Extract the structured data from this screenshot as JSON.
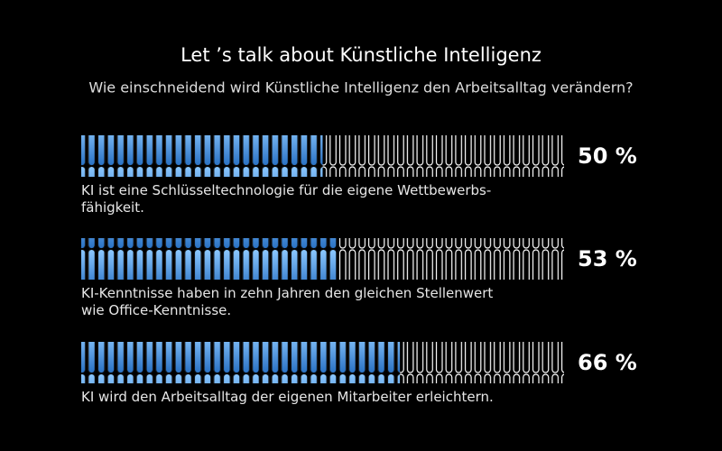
{
  "chart_data": {
    "type": "pictogram-bar",
    "title": "Let ’s talk about Künstliche Intelligenz",
    "subtitle": "Wie einschneidend wird Künstliche Intelligenz den Arbeitsalltag verändern?",
    "categories": [
      "KI ist eine Schlüsseltechnologie für die eigene Wettbewerbs-\nfähigkeit.",
      "KI-Kenntnisse haben in zehn Jahren den gleichen Stellenwert\nwie Office-Kenntnisse.",
      "KI wird den Arbeitsalltag der eigenen Mitarbeiter erleichtern."
    ],
    "values": [
      50,
      53,
      66
    ],
    "value_labels": [
      "50 %",
      "53 %",
      "66 %"
    ],
    "color": "#4a9be8",
    "xlim": [
      0,
      100
    ]
  }
}
